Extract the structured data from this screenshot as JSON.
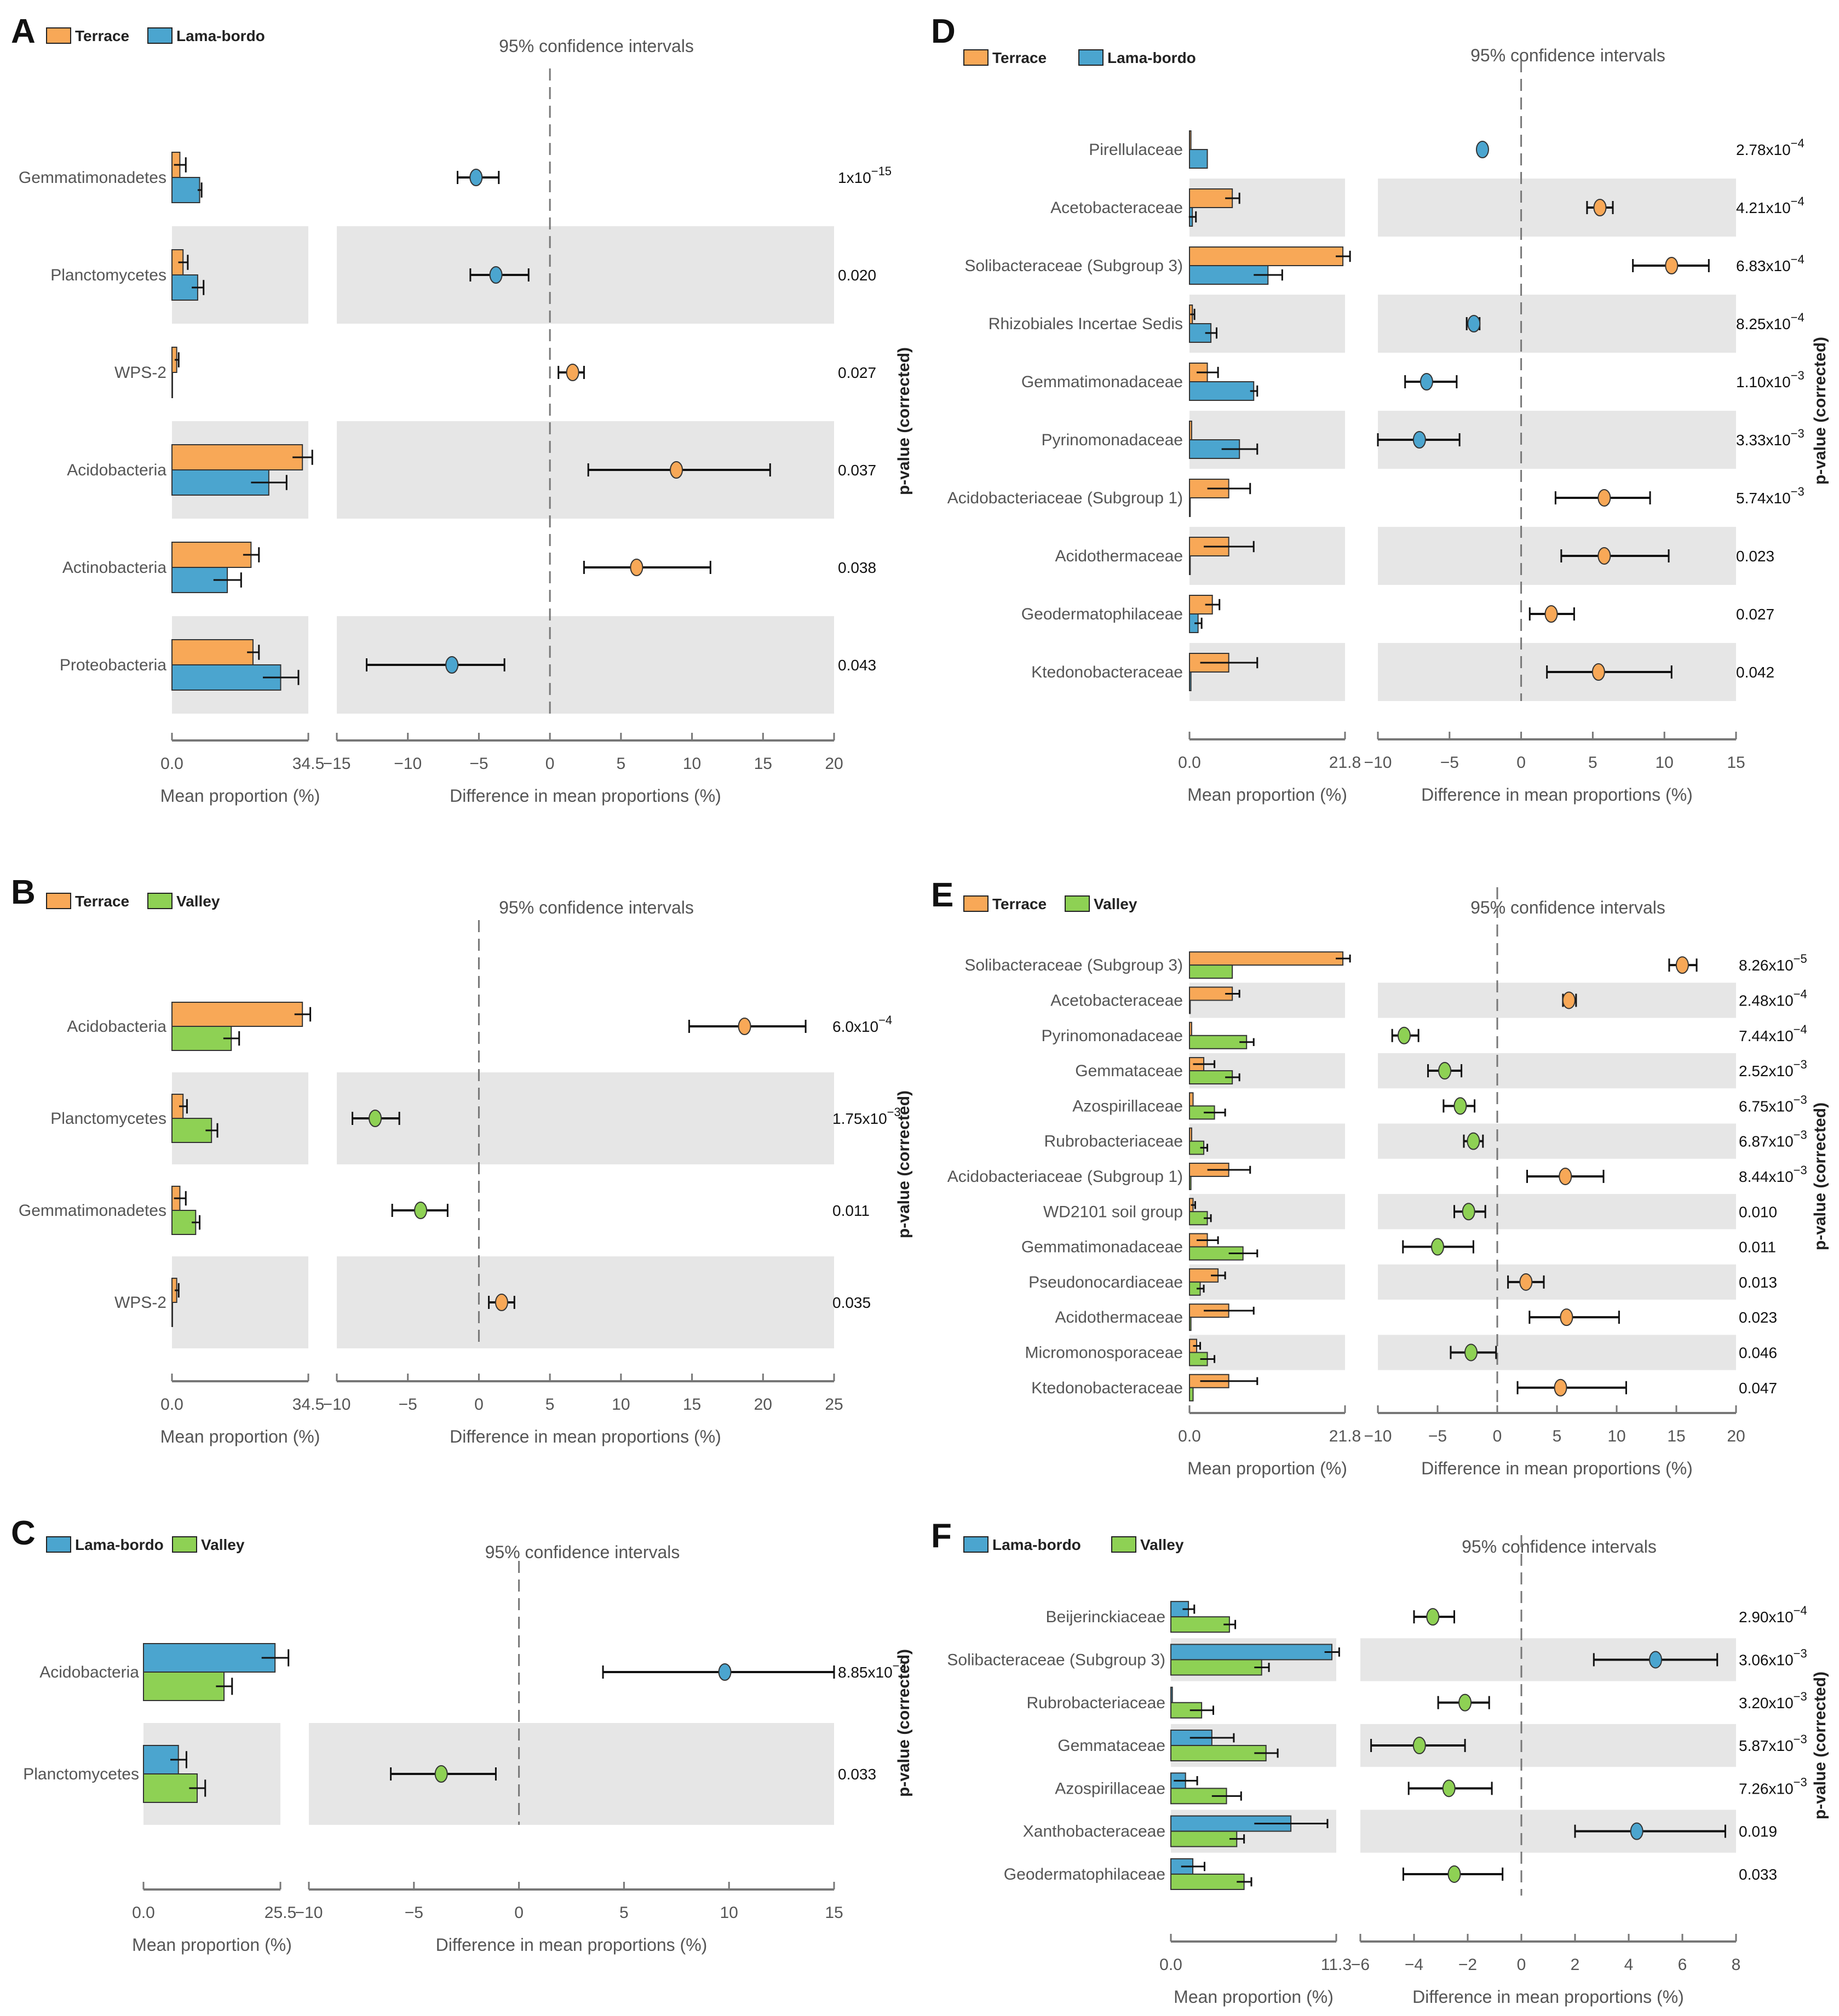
{
  "colors": {
    "Terrace": "#F8A857",
    "Lama-bordo": "#4BA5CF",
    "Valley": "#8ED154",
    "band": "#E6E6E6"
  },
  "common": {
    "ci_title": "95% confidence intervals",
    "mean_label": "Mean proportion (%)",
    "diff_label": "Difference in mean proportions (%)",
    "pval_label": "p-value (corrected)"
  },
  "chart_data": [
    {
      "id": "A",
      "type": "bar",
      "groups": [
        "Terrace",
        "Lama-bordo"
      ],
      "mean_max": 34.5,
      "mean_max_label": "34.5",
      "diff_range": [
        -15,
        20
      ],
      "diff_ticks": [
        -15,
        -10,
        -5,
        0,
        5,
        10,
        15,
        20
      ],
      "categories": [
        "Gemmatimonadetes",
        "Planctomycetes",
        "WPS-2",
        "Acidobacteria",
        "Actinobacteria",
        "Proteobacteria"
      ],
      "series": [
        {
          "name": "Terrace",
          "values": [
            2.0,
            2.8,
            1.2,
            33.0,
            20.0,
            20.5
          ],
          "err": [
            1.5,
            1.2,
            0.5,
            2.5,
            2.0,
            1.5
          ]
        },
        {
          "name": "Lama-bordo",
          "values": [
            7.0,
            6.5,
            0.1,
            24.5,
            14.0,
            27.5
          ],
          "err": [
            0.5,
            1.5,
            0,
            4.5,
            3.5,
            4.5
          ]
        }
      ],
      "diff": [
        -5.2,
        -3.8,
        1.6,
        8.9,
        6.1,
        -6.9
      ],
      "ci": [
        [
          -6.5,
          -3.6
        ],
        [
          -5.6,
          -1.5
        ],
        [
          0.6,
          2.4
        ],
        [
          2.7,
          15.5
        ],
        [
          2.4,
          11.3
        ],
        [
          -12.9,
          -3.2
        ]
      ],
      "pvalues": [
        {
          "m": "1x10",
          "e": "−15"
        },
        {
          "m": "0.020"
        },
        {
          "m": "0.027"
        },
        {
          "m": "0.037"
        },
        {
          "m": "0.038"
        },
        {
          "m": "0.043"
        }
      ]
    },
    {
      "id": "B",
      "type": "bar",
      "groups": [
        "Terrace",
        "Valley"
      ],
      "mean_max": 34.5,
      "mean_max_label": "34.5",
      "diff_range": [
        -10,
        25
      ],
      "diff_ticks": [
        -10,
        -5,
        0,
        5,
        10,
        15,
        20,
        25
      ],
      "categories": [
        "Acidobacteria",
        "Planctomycetes",
        "Gemmatimonadetes",
        "WPS-2"
      ],
      "series": [
        {
          "name": "Terrace",
          "values": [
            33.0,
            2.8,
            2.0,
            1.2
          ],
          "err": [
            2.0,
            1.0,
            1.5,
            0.5
          ]
        },
        {
          "name": "Valley",
          "values": [
            15.0,
            10.0,
            6.0,
            0.1
          ],
          "err": [
            2.0,
            1.5,
            1.0,
            0
          ]
        }
      ],
      "diff": [
        18.7,
        -7.3,
        -4.1,
        1.6
      ],
      "ci": [
        [
          14.8,
          23.0
        ],
        [
          -8.9,
          -5.6
        ],
        [
          -6.1,
          -2.2
        ],
        [
          0.7,
          2.5
        ]
      ],
      "pvalues": [
        {
          "m": "6.0x10",
          "e": "−4"
        },
        {
          "m": "1.75x10",
          "e": "−3"
        },
        {
          "m": "0.011"
        },
        {
          "m": "0.035"
        }
      ]
    },
    {
      "id": "C",
      "type": "bar",
      "groups": [
        "Lama-bordo",
        "Valley"
      ],
      "mean_max": 25.5,
      "mean_max_label": "25.5",
      "diff_range": [
        -10,
        15
      ],
      "diff_ticks": [
        -10,
        -5,
        0,
        5,
        10,
        15
      ],
      "categories": [
        "Acidobacteria",
        "Planctomycetes"
      ],
      "series": [
        {
          "name": "Lama-bordo",
          "values": [
            24.5,
            6.5
          ],
          "err": [
            2.5,
            1.5
          ]
        },
        {
          "name": "Valley",
          "values": [
            15.0,
            10.0
          ],
          "err": [
            1.5,
            1.5
          ]
        }
      ],
      "diff": [
        9.8,
        -3.7
      ],
      "ci": [
        [
          4.0,
          15.0
        ],
        [
          -6.1,
          -1.1
        ]
      ],
      "pvalues": [
        {
          "m": "8.85x10",
          "e": "−3"
        },
        {
          "m": "0.033"
        }
      ]
    },
    {
      "id": "D",
      "type": "bar",
      "groups": [
        "Terrace",
        "Lama-bordo"
      ],
      "mean_max": 21.8,
      "mean_max_label": "21.8",
      "diff_range": [
        -10,
        15
      ],
      "diff_ticks": [
        -10,
        -5,
        0,
        5,
        10,
        15
      ],
      "categories": [
        "Pirellulaceae",
        "Acetobacteraceae",
        "Solibacteraceae (Subgroup 3)",
        "Rhizobiales Incertae Sedis",
        "Gemmatimonadaceae",
        "Pyrinomonadaceae",
        "Acidobacteriaceae (Subgroup 1)",
        "Acidothermaceae",
        "Geodermatophilaceae",
        "Ktedonobacteraceae"
      ],
      "series": [
        {
          "name": "Terrace",
          "values": [
            0.2,
            6.0,
            21.5,
            0.4,
            2.5,
            0.3,
            5.5,
            5.5,
            3.2,
            5.5
          ],
          "err": [
            0,
            1.0,
            1.0,
            0.3,
            1.5,
            0,
            3.0,
            3.5,
            1.0,
            4.0
          ]
        },
        {
          "name": "Lama-bordo",
          "values": [
            2.5,
            0.4,
            11.0,
            3.0,
            9.0,
            7.0,
            0.1,
            0.1,
            1.2,
            0.2
          ],
          "err": [
            0,
            0.5,
            2.0,
            0.8,
            0.5,
            2.5,
            0,
            0,
            0.5,
            0
          ]
        }
      ],
      "diff": [
        -2.7,
        5.5,
        10.5,
        -3.3,
        -6.6,
        -7.1,
        5.8,
        5.8,
        2.1,
        5.4
      ],
      "ci": [
        [
          -2.7,
          -2.7
        ],
        [
          4.6,
          6.4
        ],
        [
          7.8,
          13.1
        ],
        [
          -3.8,
          -2.9
        ],
        [
          -8.1,
          -4.5
        ],
        [
          -10.0,
          -4.3
        ],
        [
          2.4,
          9.0
        ],
        [
          2.8,
          10.3
        ],
        [
          0.6,
          3.7
        ],
        [
          1.8,
          10.5
        ]
      ],
      "pvalues": [
        {
          "m": "2.78x10",
          "e": "−4"
        },
        {
          "m": "4.21x10",
          "e": "−4"
        },
        {
          "m": "6.83x10",
          "e": "−4"
        },
        {
          "m": "8.25x10",
          "e": "−4"
        },
        {
          "m": "1.10x10",
          "e": "−3"
        },
        {
          "m": "3.33x10",
          "e": "−3"
        },
        {
          "m": "5.74x10",
          "e": "−3"
        },
        {
          "m": "0.023"
        },
        {
          "m": "0.027"
        },
        {
          "m": "0.042"
        }
      ]
    },
    {
      "id": "E",
      "type": "bar",
      "groups": [
        "Terrace",
        "Valley"
      ],
      "mean_max": 21.8,
      "mean_max_label": "21.8",
      "diff_range": [
        -10,
        20
      ],
      "diff_ticks": [
        -10,
        -5,
        0,
        5,
        10,
        15,
        20
      ],
      "categories": [
        "Solibacteraceae (Subgroup 3)",
        "Acetobacteraceae",
        "Pyrinomonadaceae",
        "Gemmataceae",
        "Azospirillaceae",
        "Rubrobacteriaceae",
        "Acidobacteriaceae (Subgroup 1)",
        "WD2101 soil group",
        "Gemmatimonadaceae",
        "Pseudonocardiaceae",
        "Acidothermaceae",
        "Micromonosporaceae",
        "Ktedonobacteraceae"
      ],
      "series": [
        {
          "name": "Terrace",
          "values": [
            21.5,
            6.0,
            0.3,
            2.0,
            0.5,
            0.3,
            5.5,
            0.5,
            2.5,
            4.0,
            5.5,
            1.0,
            5.5
          ],
          "err": [
            1.0,
            1.0,
            0,
            1.5,
            0,
            0,
            3.0,
            0.3,
            1.5,
            1.0,
            3.5,
            0.5,
            4.0
          ]
        },
        {
          "name": "Valley",
          "values": [
            6.0,
            0.1,
            8.0,
            6.0,
            3.5,
            2.0,
            0.2,
            2.5,
            7.5,
            1.5,
            0.2,
            2.5,
            0.5
          ],
          " err": [
            0,
            0,
            1.0,
            1.0,
            1.5,
            0.5,
            0,
            0.5,
            2.0,
            0.5,
            0,
            1.0,
            0
          ],
          "err": [
            0,
            0,
            1.0,
            1.0,
            1.5,
            0.5,
            0,
            0.5,
            2.0,
            0.5,
            0,
            1.0,
            0
          ]
        }
      ],
      "diff": [
        15.5,
        6.0,
        -7.8,
        -4.4,
        -3.1,
        -2.0,
        5.7,
        -2.4,
        -5.0,
        2.4,
        5.8,
        -2.2,
        5.3
      ],
      "ci": [
        [
          14.4,
          16.7
        ],
        [
          5.5,
          6.6
        ],
        [
          -8.8,
          -6.6
        ],
        [
          -5.8,
          -3.0
        ],
        [
          -4.5,
          -1.9
        ],
        [
          -2.8,
          -1.2
        ],
        [
          2.5,
          8.9
        ],
        [
          -3.6,
          -1.0
        ],
        [
          -7.9,
          -2.0
        ],
        [
          0.9,
          3.9
        ],
        [
          2.7,
          10.2
        ],
        [
          -3.9,
          -0.1
        ],
        [
          1.7,
          10.8
        ]
      ],
      "pvalues": [
        {
          "m": "8.26x10",
          "e": "−5"
        },
        {
          "m": "2.48x10",
          "e": "−4"
        },
        {
          "m": "7.44x10",
          "e": "−4"
        },
        {
          "m": "2.52x10",
          "e": "−3"
        },
        {
          "m": "6.75x10",
          "e": "−3"
        },
        {
          "m": "6.87x10",
          "e": "−3"
        },
        {
          "m": "8.44x10",
          "e": "−3"
        },
        {
          "m": "0.010"
        },
        {
          "m": "0.011"
        },
        {
          "m": "0.013"
        },
        {
          "m": "0.023"
        },
        {
          "m": "0.046"
        },
        {
          "m": "0.047"
        }
      ]
    },
    {
      "id": "F",
      "type": "bar",
      "groups": [
        "Lama-bordo",
        "Valley"
      ],
      "mean_max": 11.3,
      "mean_max_label": "11.3",
      "diff_range": [
        -6,
        8
      ],
      "diff_ticks": [
        -6,
        -4,
        -2,
        0,
        2,
        4,
        6,
        8
      ],
      "categories": [
        "Beijerinckiaceae",
        "Solibacteraceae (Subgroup 3)",
        "Rubrobacteriaceae",
        "Gemmataceae",
        "Azospirillaceae",
        "Xanthobacteraceae",
        "Geodermatophilaceae"
      ],
      "series": [
        {
          "name": "Lama-bordo",
          "values": [
            1.2,
            11.0,
            0.1,
            2.8,
            1.0,
            8.2,
            1.5
          ],
          "err": [
            0.4,
            0.5,
            0,
            1.5,
            0.8,
            2.5,
            0.8
          ]
        },
        {
          "name": "Valley",
          "values": [
            4.0,
            6.2,
            2.1,
            6.5,
            3.8,
            4.5,
            5.0
          ],
          "err": [
            0.4,
            0.5,
            0.8,
            0.8,
            1.0,
            0.5,
            0.5
          ]
        }
      ],
      "diff": [
        -3.3,
        5.0,
        -2.1,
        -3.8,
        -2.7,
        4.3,
        -2.5
      ],
      "ci": [
        [
          -4.0,
          -2.5
        ],
        [
          2.7,
          7.3
        ],
        [
          -3.1,
          -1.2
        ],
        [
          -5.6,
          -2.1
        ],
        [
          -4.2,
          -1.1
        ],
        [
          2.0,
          7.6
        ],
        [
          -4.4,
          -0.7
        ]
      ],
      "pvalues": [
        {
          "m": "2.90x10",
          "e": "−4"
        },
        {
          "m": "3.06x10",
          "e": "−3"
        },
        {
          "m": "3.20x10",
          "e": "−3"
        },
        {
          "m": "5.87x10",
          "e": "−3"
        },
        {
          "m": "7.26x10",
          "e": "−3"
        },
        {
          "m": "0.019"
        },
        {
          "m": "0.033"
        }
      ]
    }
  ]
}
